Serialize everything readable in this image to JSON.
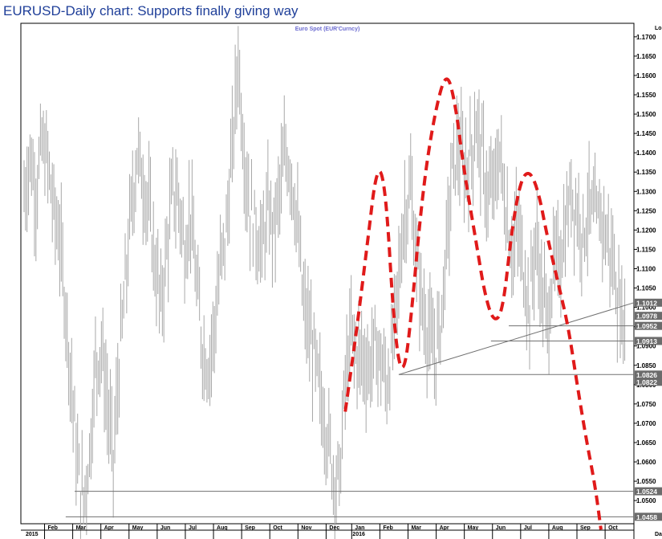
{
  "title": "EURUSD-Daily chart: Supports finally giving way",
  "chart_data": {
    "type": "candlestick",
    "series_title": "Euro Spot (EUR'Curncy)",
    "corner_label_top": "Lo",
    "corner_label_bottom": "Da",
    "ylim": [
      1.044,
      1.1735
    ],
    "y_ticks": [
      1.17,
      1.165,
      1.16,
      1.155,
      1.15,
      1.145,
      1.14,
      1.135,
      1.13,
      1.125,
      1.12,
      1.115,
      1.11,
      1.105,
      1.1,
      1.095,
      1.09,
      1.085,
      1.08,
      1.075,
      1.07,
      1.065,
      1.06,
      1.055,
      1.05
    ],
    "y_tick_labels": [
      "1.1700",
      "1.1650",
      "1.1600",
      "1.1550",
      "1.1500",
      "1.1450",
      "1.1400",
      "1.1350",
      "1.1300",
      "1.1250",
      "1.1200",
      "1.1150",
      "1.1100",
      "1.1050",
      "1.1000",
      "1.0950",
      "1.0900",
      "1.0850",
      "1.0800",
      "1.0750",
      "1.0700",
      "1.0650",
      "1.0600",
      "1.0550",
      "1.0500"
    ],
    "x_months": [
      "Feb",
      "Mar",
      "Apr",
      "May",
      "Jun",
      "Jul",
      "Aug",
      "Sep",
      "Oct",
      "Nov",
      "Dec",
      "Jan",
      "Feb",
      "Mar",
      "Apr",
      "May",
      "Jun",
      "Jul",
      "Aug",
      "Sep",
      "Oct"
    ],
    "x_years": [
      "2015",
      "2016"
    ],
    "price_path": [
      [
        0,
        1.129
      ],
      [
        2,
        1.139
      ],
      [
        4,
        1.13
      ],
      [
        6,
        1.142
      ],
      [
        8,
        1.137
      ],
      [
        10,
        1.125
      ],
      [
        12,
        1.118
      ],
      [
        14,
        1.1
      ],
      [
        16,
        1.08
      ],
      [
        18,
        1.058
      ],
      [
        20,
        1.05
      ],
      [
        22,
        1.062
      ],
      [
        24,
        1.085
      ],
      [
        26,
        1.09
      ],
      [
        28,
        1.075
      ],
      [
        30,
        1.06
      ],
      [
        32,
        1.085
      ],
      [
        34,
        1.105
      ],
      [
        36,
        1.125
      ],
      [
        38,
        1.14
      ],
      [
        40,
        1.133
      ],
      [
        42,
        1.125
      ],
      [
        44,
        1.112
      ],
      [
        46,
        1.1
      ],
      [
        48,
        1.115
      ],
      [
        50,
        1.13
      ],
      [
        52,
        1.128
      ],
      [
        54,
        1.115
      ],
      [
        56,
        1.125
      ],
      [
        58,
        1.105
      ],
      [
        60,
        1.09
      ],
      [
        62,
        1.085
      ],
      [
        64,
        1.095
      ],
      [
        66,
        1.11
      ],
      [
        68,
        1.12
      ],
      [
        70,
        1.14
      ],
      [
        72,
        1.165
      ],
      [
        74,
        1.14
      ],
      [
        76,
        1.125
      ],
      [
        78,
        1.12
      ],
      [
        80,
        1.115
      ],
      [
        82,
        1.125
      ],
      [
        84,
        1.12
      ],
      [
        86,
        1.13
      ],
      [
        88,
        1.14
      ],
      [
        90,
        1.135
      ],
      [
        92,
        1.12
      ],
      [
        94,
        1.1
      ],
      [
        96,
        1.093
      ],
      [
        98,
        1.085
      ],
      [
        100,
        1.075
      ],
      [
        102,
        1.068
      ],
      [
        104,
        1.057
      ],
      [
        106,
        1.055
      ],
      [
        108,
        1.08
      ],
      [
        110,
        1.093
      ],
      [
        112,
        1.088
      ],
      [
        114,
        1.087
      ],
      [
        116,
        1.084
      ],
      [
        118,
        1.09
      ],
      [
        120,
        1.086
      ],
      [
        122,
        1.08
      ],
      [
        124,
        1.09
      ],
      [
        126,
        1.108
      ],
      [
        128,
        1.125
      ],
      [
        130,
        1.13
      ],
      [
        132,
        1.112
      ],
      [
        134,
        1.1
      ],
      [
        136,
        1.093
      ],
      [
        138,
        1.087
      ],
      [
        140,
        1.095
      ],
      [
        142,
        1.115
      ],
      [
        144,
        1.135
      ],
      [
        146,
        1.142
      ],
      [
        148,
        1.135
      ],
      [
        150,
        1.138
      ],
      [
        152,
        1.148
      ],
      [
        154,
        1.139
      ],
      [
        156,
        1.128
      ],
      [
        158,
        1.131
      ],
      [
        160,
        1.14
      ],
      [
        162,
        1.125
      ],
      [
        164,
        1.115
      ],
      [
        166,
        1.12
      ],
      [
        168,
        1.11
      ],
      [
        170,
        1.1
      ],
      [
        172,
        1.118
      ],
      [
        174,
        1.105
      ],
      [
        176,
        1.096
      ],
      [
        178,
        1.11
      ],
      [
        180,
        1.112
      ],
      [
        182,
        1.12
      ],
      [
        184,
        1.13
      ],
      [
        186,
        1.125
      ],
      [
        188,
        1.119
      ],
      [
        190,
        1.126
      ],
      [
        192,
        1.122
      ],
      [
        194,
        1.124
      ],
      [
        196,
        1.118
      ],
      [
        198,
        1.112
      ],
      [
        200,
        1.1
      ],
      [
        202,
        1.097
      ]
    ],
    "price_markers": [
      {
        "label": "1.1012",
        "value": 1.1012,
        "color": "#6b6b6b"
      },
      {
        "label": "1.0978",
        "value": 1.0978,
        "color": "#6b6b6b"
      },
      {
        "label": "1.0952",
        "value": 1.0952,
        "color": "#6b6b6b"
      },
      {
        "label": "1.0913",
        "value": 1.0913,
        "color": "#6b6b6b"
      },
      {
        "label": "1.0826",
        "value": 1.0826,
        "color": "#6b6b6b"
      },
      {
        "label": "1.0822",
        "value": 1.0822,
        "color": "#6b6b6b"
      },
      {
        "label": "1.0524",
        "value": 1.0524,
        "color": "#6b6b6b"
      },
      {
        "label": "1.0458",
        "value": 1.0458,
        "color": "#6b6b6b"
      }
    ],
    "support_lines": [
      {
        "name": "neckline-1.0826",
        "y": 1.0826,
        "x_from": 126
      },
      {
        "name": "support-1.0913",
        "y": 1.0913,
        "x_from": 157
      },
      {
        "name": "support-1.0952",
        "y": 1.0952,
        "x_from": 163
      },
      {
        "name": "support-1.0524",
        "y": 1.0524,
        "x_from": 17
      },
      {
        "name": "support-1.0458",
        "y": 1.0458,
        "x_from": 14
      }
    ],
    "trendline": {
      "from": [
        126,
        1.0826
      ],
      "to": [
        203,
        1.1012
      ]
    },
    "pattern_path": [
      [
        108,
        1.073
      ],
      [
        112,
        1.095
      ],
      [
        116,
        1.12
      ],
      [
        118,
        1.133
      ],
      [
        120,
        1.1365
      ],
      [
        122,
        1.126
      ],
      [
        124,
        1.1
      ],
      [
        126,
        1.085
      ],
      [
        128,
        1.084
      ],
      [
        130,
        1.096
      ],
      [
        134,
        1.13
      ],
      [
        138,
        1.15
      ],
      [
        142,
        1.1615
      ],
      [
        145,
        1.153
      ],
      [
        148,
        1.135
      ],
      [
        152,
        1.117
      ],
      [
        155,
        1.103
      ],
      [
        158,
        1.096
      ],
      [
        161,
        1.099
      ],
      [
        164,
        1.12
      ],
      [
        167,
        1.133
      ],
      [
        170,
        1.1355
      ],
      [
        173,
        1.13
      ],
      [
        176,
        1.118
      ],
      [
        180,
        1.105
      ],
      [
        183,
        1.095
      ],
      [
        186,
        1.08
      ],
      [
        189,
        1.066
      ],
      [
        192,
        1.054
      ],
      [
        194,
        1.0425
      ]
    ],
    "colors": {
      "bars": "#a8a8a8",
      "pattern": "#e01a1a",
      "badge": "#6b6b6b",
      "lines": "#707070",
      "title": "#1f3f99"
    }
  }
}
